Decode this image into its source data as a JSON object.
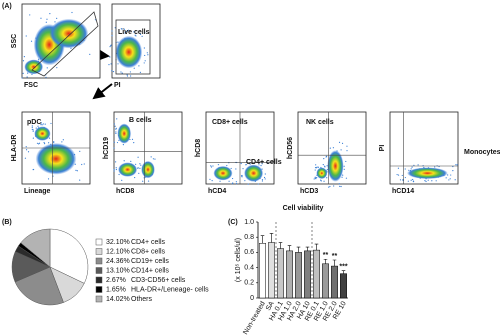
{
  "panel_a": {
    "label": "(A)",
    "plots": [
      {
        "y_label": "SSC",
        "x_label": "FSC",
        "gates": []
      },
      {
        "x_label": "PI",
        "gates": [
          "Live cells"
        ]
      },
      {
        "y_label": "HLA-DR",
        "x_label": "Lineage",
        "gates": [
          "pDC"
        ]
      },
      {
        "y_label": "hCD19",
        "x_label": "hCD8",
        "gates": [
          "B cells"
        ]
      },
      {
        "y_label": "hCD8",
        "x_label": "hCD4",
        "gates": [
          "CD8+ cells",
          "CD4+ cells"
        ]
      },
      {
        "y_label": "hCD56",
        "x_label": "hCD3",
        "gates": [
          "NK cells"
        ]
      },
      {
        "y_label": "PI",
        "x_label": "hCD14",
        "gates": [
          "Monocytes"
        ]
      }
    ]
  },
  "panel_b": {
    "label": "(B)"
  },
  "panel_c": {
    "label": "(C)"
  },
  "chart_data": [
    {
      "type": "pie",
      "categories": [
        "CD4+ cells",
        "CD8+ cells",
        "CD19+ cells",
        "CD14+ cells",
        "CD3-CD56+ cells",
        "HLA-DR+/Leneage- cells",
        "Others"
      ],
      "values": [
        32.1,
        12.1,
        24.36,
        13.1,
        2.67,
        1.65,
        14.02
      ],
      "value_labels": [
        "32.10%",
        "12.10%",
        "24.36%",
        "13.10%",
        "2.67%",
        "1.65%",
        "14.02%"
      ],
      "colors": [
        "#ffffff",
        "#d9d9d9",
        "#8c8c8c",
        "#5a5a5a",
        "#2b2b2b",
        "#000000",
        "#b3b3b3"
      ]
    },
    {
      "type": "bar",
      "title": "Cell viability",
      "y_label": "(x 10⁵ cells/ul)",
      "categories": [
        "Non-treated",
        "SA",
        "HA 0.1",
        "HA 1.0",
        "HA 2.0",
        "HA 10",
        "RE 0.1",
        "RE 1.0",
        "RE 2.0",
        "RE 10"
      ],
      "values": [
        0.72,
        0.73,
        0.65,
        0.62,
        0.6,
        0.62,
        0.63,
        0.45,
        0.42,
        0.32
      ],
      "errors": [
        0.1,
        0.12,
        0.08,
        0.07,
        0.07,
        0.05,
        0.08,
        0.06,
        0.08,
        0.04
      ],
      "annotations": [
        null,
        null,
        null,
        null,
        null,
        null,
        null,
        "**",
        "**",
        "***"
      ],
      "colors": [
        "#ffffff",
        "#e0e0e0",
        "#c8c8c8",
        "#b0b0b0",
        "#989898",
        "#808080",
        "#c0c0c0",
        "#9a9a9a",
        "#707070",
        "#404040"
      ],
      "ylim": [
        0,
        1.0
      ],
      "yticks": [
        0,
        0.2,
        0.4,
        0.6,
        0.8,
        {
          "value": 1.0,
          "label": "1.0"
        }
      ]
    }
  ]
}
